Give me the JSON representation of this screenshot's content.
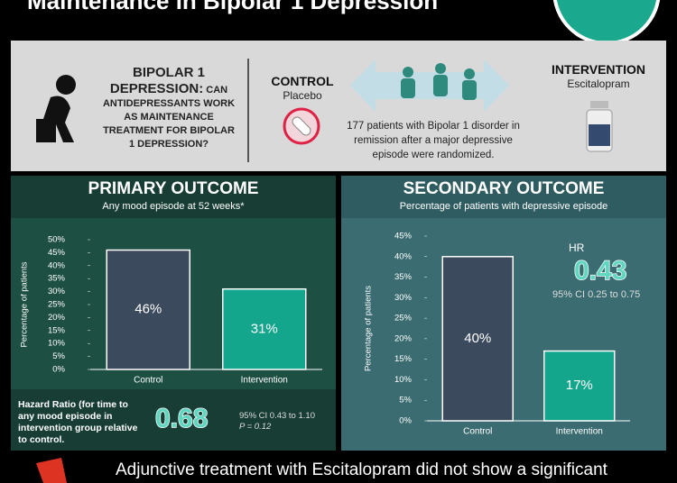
{
  "header": {
    "title": "Maintenance in Bipolar 1 Depression"
  },
  "question": {
    "lead": "BIPOLAR 1 DEPRESSION:",
    "rest": "CAN ANTIDEPRESSANTS WORK AS MAINTENANCE TREATMENT FOR BIPOLAR 1 DEPRESSION?"
  },
  "design": {
    "control_label": "CONTROL",
    "control_arm": "Placebo",
    "population": "177 patients with Bipolar 1 disorder in remission after a major depressive episode were randomized.",
    "intervention_label": "INTERVENTION",
    "intervention_arm": "Escitalopram"
  },
  "chart_data": [
    {
      "type": "bar",
      "title": "PRIMARY OUTCOME",
      "subtitle": "Any mood episode at 52 weeks*",
      "y_label": "Percentage of patients",
      "categories": [
        "Control",
        "Intervention"
      ],
      "values": [
        46,
        31
      ],
      "value_labels": [
        "46%",
        "31%"
      ],
      "colors": [
        "#3c4a5e",
        "#14a68c"
      ],
      "ylim": [
        0,
        50
      ],
      "yticks": [
        {
          "value": 0,
          "label": "0%"
        },
        {
          "value": 5,
          "label": "5%"
        },
        {
          "value": 10,
          "label": "10%"
        },
        {
          "value": 15,
          "label": "15%"
        },
        {
          "value": 20,
          "label": "20%"
        },
        {
          "value": 25,
          "label": "25%"
        },
        {
          "value": 30,
          "label": "30%"
        },
        {
          "value": 35,
          "label": "35%"
        },
        {
          "value": 40,
          "label": "40%"
        },
        {
          "value": 45,
          "label": "45%"
        },
        {
          "value": 50,
          "label": "50%"
        }
      ]
    },
    {
      "type": "bar",
      "title": "SECONDARY OUTCOME",
      "subtitle": "Percentage of patients with depressive episode",
      "y_label": "Percentage of patients",
      "categories": [
        "Control",
        "Intervention"
      ],
      "values": [
        40,
        17
      ],
      "value_labels": [
        "40%",
        "17%"
      ],
      "colors": [
        "#3c4a5e",
        "#14a68c"
      ],
      "ylim": [
        0,
        45
      ],
      "yticks": [
        {
          "value": 0,
          "label": "0%"
        },
        {
          "value": 5,
          "label": "5%"
        },
        {
          "value": 10,
          "label": "10%"
        },
        {
          "value": 15,
          "label": "15%"
        },
        {
          "value": 20,
          "label": "20%"
        },
        {
          "value": 25,
          "label": "25%"
        },
        {
          "value": 30,
          "label": "30%"
        },
        {
          "value": 35,
          "label": "35%"
        },
        {
          "value": 40,
          "label": "40%"
        },
        {
          "value": 45,
          "label": "45%"
        }
      ]
    }
  ],
  "primary_result": {
    "text": "Hazard Ratio (for time to any mood episode in intervention group relative to control.",
    "value": 0.68,
    "ci": "95% CI 0.43 to 1.10",
    "p": "P = 0.12"
  },
  "secondary_result": {
    "label": "HR",
    "value": 0.43,
    "ci": "95% CI 0.25 to 0.75"
  },
  "conclusion": "Adjunctive treatment with Escitalopram did not show a significant"
}
